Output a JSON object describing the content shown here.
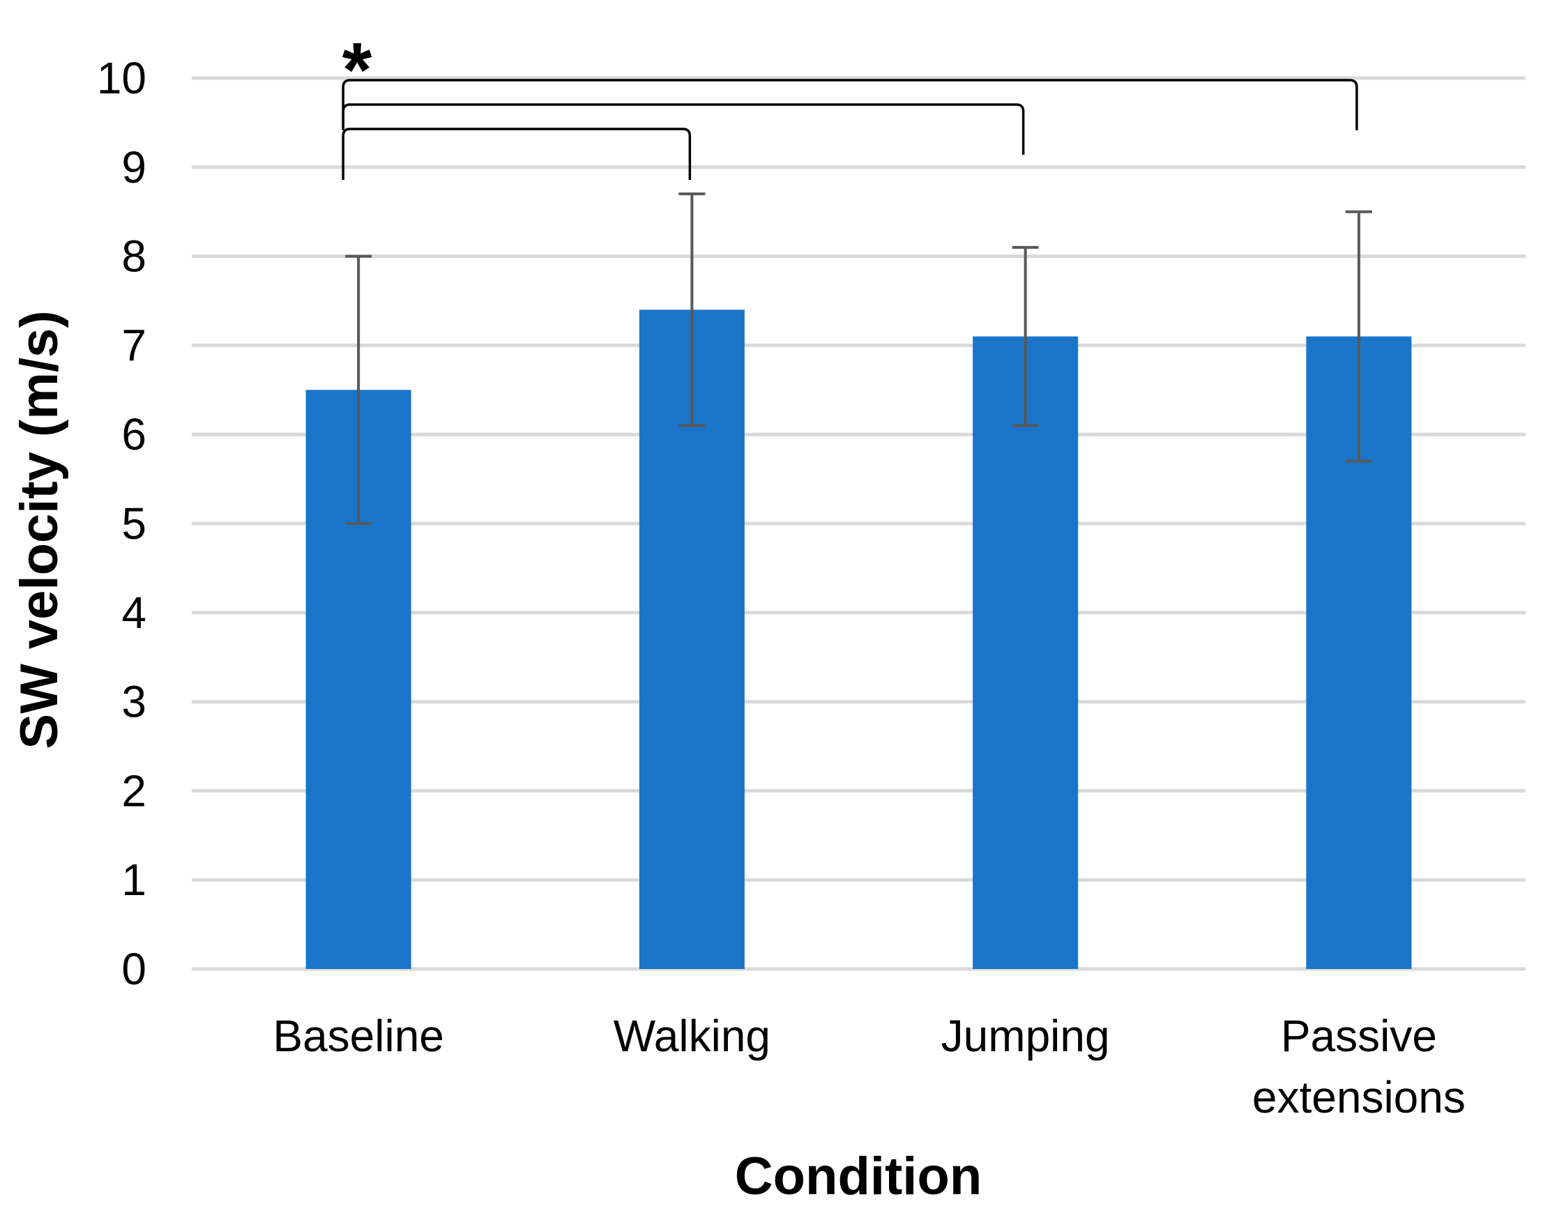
{
  "chart_data": {
    "type": "bar",
    "title": "",
    "xlabel": "Condition",
    "ylabel": "SW velocity (m/s)",
    "ylim": [
      0,
      10
    ],
    "yticks": [
      "0",
      "1",
      "2",
      "3",
      "4",
      "5",
      "6",
      "7",
      "8",
      "9",
      "10"
    ],
    "grid": true,
    "categories": [
      [
        "Baseline"
      ],
      [
        "Walking"
      ],
      [
        "Jumping"
      ],
      [
        "Passive",
        "extensions"
      ]
    ],
    "values": [
      6.5,
      7.4,
      7.1,
      7.1
    ],
    "error_upper": [
      8.0,
      8.7,
      8.1,
      8.5
    ],
    "error_lower": [
      5.0,
      6.1,
      6.1,
      5.7
    ],
    "significance": {
      "label": "*",
      "reference": "Baseline",
      "compared_with": [
        "Walking",
        "Jumping",
        "Passive extensions"
      ]
    },
    "colors": {
      "bar": "#1a75c9",
      "error_bar": "#595959",
      "grid": "#d9d9d9",
      "bracket": "#000000"
    }
  }
}
